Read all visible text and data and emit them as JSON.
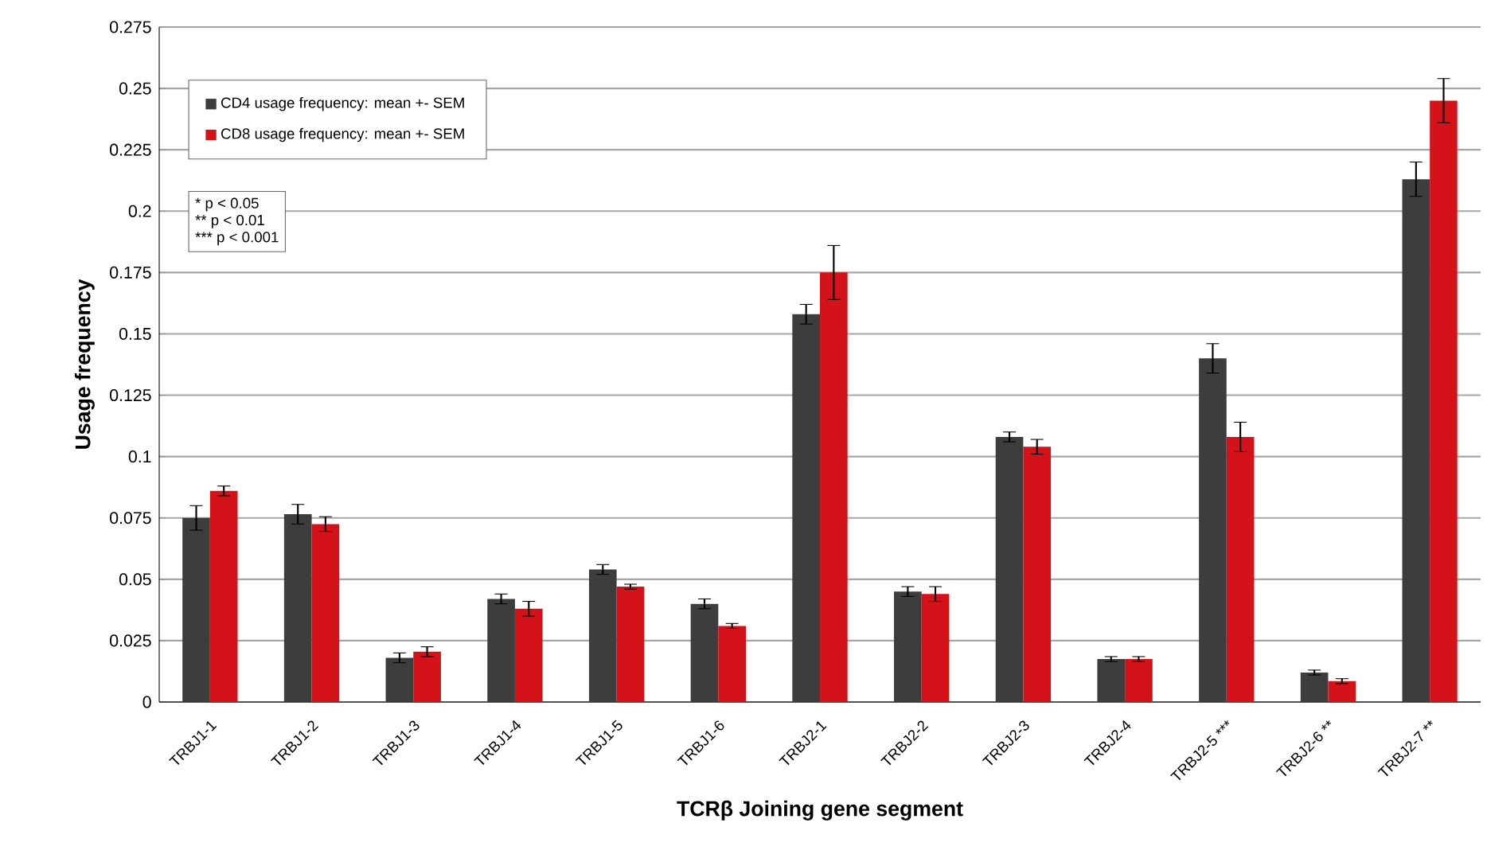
{
  "chart_data": {
    "type": "bar",
    "xlabel": "TCRβ Joining gene segment",
    "ylabel": "Usage frequency",
    "categories": [
      "TRBJ1-1",
      "TRBJ1-2",
      "TRBJ1-3",
      "TRBJ1-4",
      "TRBJ1-5",
      "TRBJ1-6",
      "TRBJ2-1",
      "TRBJ2-2",
      "TRBJ2-3",
      "TRBJ2-4",
      "TRBJ2-5 ***",
      "TRBJ2-6 **",
      "TRBJ2-7 **"
    ],
    "series": [
      {
        "name": "CD4 usage frequency: mean +- SEM",
        "color": "#3d3d3d",
        "values": [
          0.075,
          0.0765,
          0.018,
          0.042,
          0.054,
          0.04,
          0.158,
          0.045,
          0.108,
          0.0175,
          0.14,
          0.012,
          0.213
        ],
        "errors": [
          0.005,
          0.004,
          0.002,
          0.002,
          0.002,
          0.002,
          0.004,
          0.002,
          0.002,
          0.001,
          0.006,
          0.001,
          0.007
        ]
      },
      {
        "name": "CD8 usage frequency: mean +- SEM",
        "color": "#d4121a",
        "values": [
          0.086,
          0.0725,
          0.0205,
          0.038,
          0.047,
          0.031,
          0.175,
          0.044,
          0.104,
          0.0175,
          0.108,
          0.0085,
          0.245
        ],
        "errors": [
          0.002,
          0.003,
          0.002,
          0.003,
          0.001,
          0.001,
          0.011,
          0.003,
          0.003,
          0.001,
          0.006,
          0.001,
          0.009
        ]
      }
    ],
    "ylim": [
      0,
      0.275
    ],
    "yticks": [
      0,
      0.025,
      0.05,
      0.075,
      0.1,
      0.125,
      0.15,
      0.175,
      0.2,
      0.225,
      0.25,
      0.275
    ],
    "grid": "y",
    "legend": "top left",
    "annotations": [
      "*      p < 0.05",
      "**    p < 0.01",
      "***  p < 0.001"
    ]
  }
}
